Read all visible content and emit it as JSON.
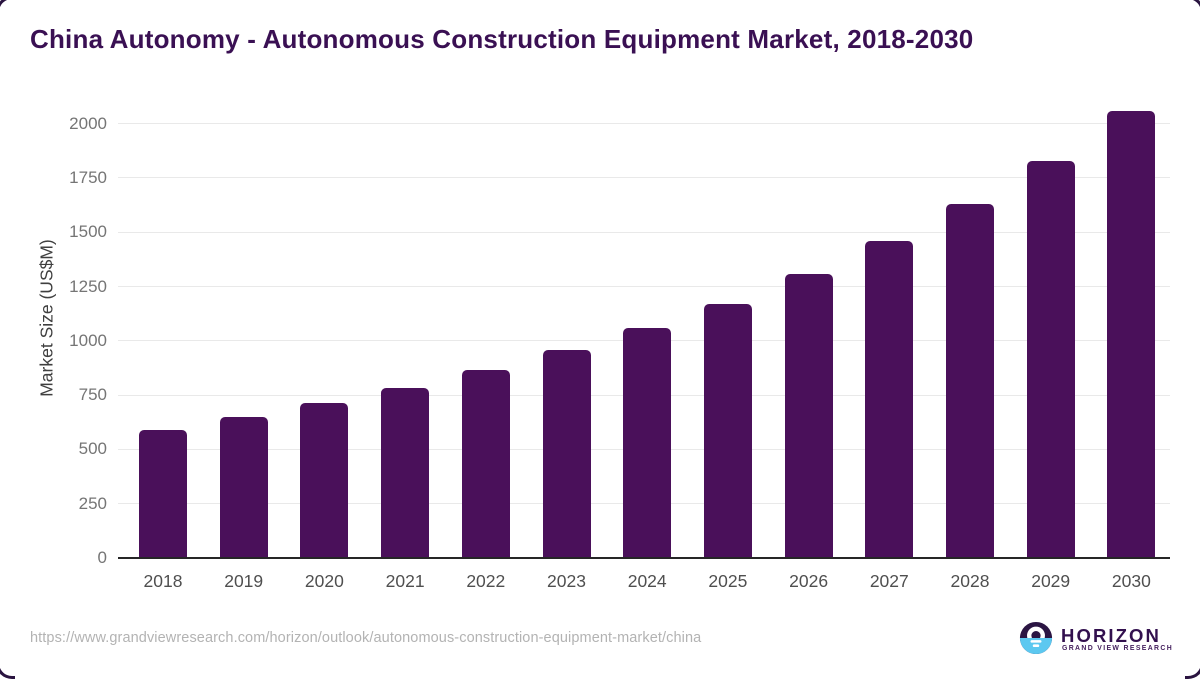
{
  "title": "China Autonomy - Autonomous Construction Equipment Market, 2018-2030",
  "chart_data": {
    "type": "bar",
    "title": "China Autonomy - Autonomous Construction Equipment Market, 2018-2030",
    "categories": [
      "2018",
      "2019",
      "2020",
      "2021",
      "2022",
      "2023",
      "2024",
      "2025",
      "2026",
      "2027",
      "2028",
      "2029",
      "2030"
    ],
    "values": [
      590,
      648,
      715,
      785,
      866,
      958,
      1060,
      1171,
      1307,
      1459,
      1631,
      1827,
      2057
    ],
    "series_name": "Market Size",
    "xlabel": "",
    "ylabel": "Market Size (US$M)",
    "yticks": [
      0,
      250,
      500,
      750,
      1000,
      1250,
      1500,
      1750,
      2000
    ],
    "ylim": [
      0,
      2065
    ],
    "grid": true,
    "legend_position": "none",
    "bar_color": "#4a105a"
  },
  "footer": {
    "source_url": "https://www.grandviewresearch.com/horizon/outlook/autonomous-construction-equipment-market/china",
    "logo": {
      "name": "HORIZON",
      "subtitle": "GRAND VIEW RESEARCH",
      "icon": "horizon-sunrise-icon"
    }
  },
  "colors": {
    "title": "#3a1053",
    "bar": "#4a105a",
    "grid": "#e9e9e9",
    "axis_line": "#262626",
    "tick_label": "#757575",
    "x_label": "#4f4f4f",
    "y_axis_title": "#3f3f3f",
    "url": "#b3b3b3",
    "logo_dark": "#2b1543",
    "logo_blue": "#5cc8f0",
    "logo_text": "#32104e",
    "logo_subtext": "#45215e",
    "corner_frame": "#2a1440"
  }
}
